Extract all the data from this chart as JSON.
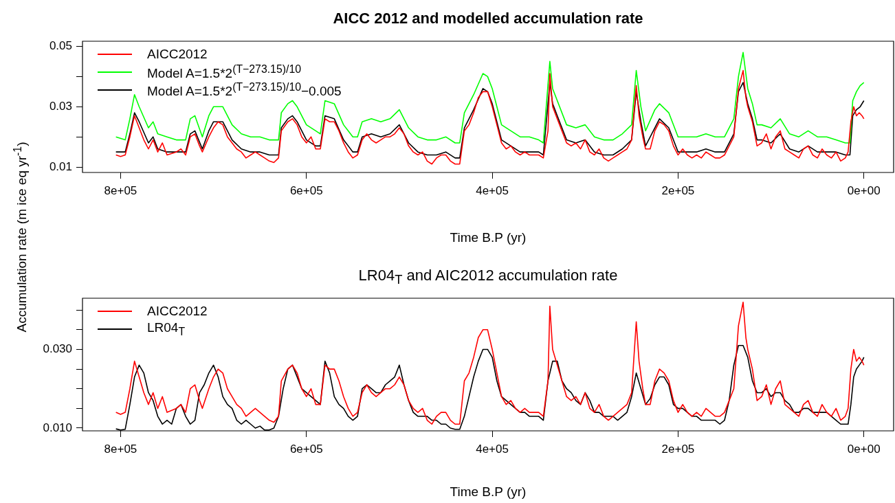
{
  "chart_data": [
    {
      "type": "line",
      "title": "AICC 2012 and modelled accumulation rate",
      "xlabel": "Time B.P (yr)",
      "ylabel": "Accumulation rate (m ice eq yr$^{-1}$)",
      "legend": "top left",
      "marker": "none",
      "line_style": "solid",
      "xlim": [
        841000,
        -32000
      ],
      "xticks": [
        {
          "value": 800000,
          "label": "8e+05"
        },
        {
          "value": 600000,
          "label": "6e+05"
        },
        {
          "value": 400000,
          "label": "4e+05"
        },
        {
          "value": 200000,
          "label": "2e+05"
        },
        {
          "value": 0,
          "label": "0e+00"
        }
      ],
      "ylim": [
        0.0082,
        0.0517
      ],
      "yticks": [
        0.01,
        {
          "value": 0.02,
          "label": null
        },
        0.03,
        {
          "value": 0.04,
          "label": null
        },
        0.05
      ],
      "series": [
        {
          "name": "AICC2012",
          "color": "#ff0000",
          "x": [
            805000,
            800000,
            795000,
            790000,
            785000,
            780000,
            775000,
            770000,
            765000,
            760000,
            755000,
            750000,
            740000,
            735000,
            730000,
            725000,
            720000,
            715000,
            712000,
            705000,
            700000,
            695000,
            690000,
            685000,
            680000,
            675000,
            670000,
            665000,
            660000,
            655000,
            650000,
            645000,
            640000,
            635000,
            630000,
            627000,
            620000,
            615000,
            610000,
            605000,
            600000,
            595000,
            590000,
            585000,
            580000,
            575000,
            570000,
            565000,
            560000,
            555000,
            550000,
            545000,
            540000,
            535000,
            530000,
            525000,
            520000,
            515000,
            510000,
            505000,
            500000,
            495000,
            490000,
            485000,
            480000,
            475000,
            470000,
            465000,
            460000,
            455000,
            450000,
            445000,
            440000,
            435000,
            430000,
            425000,
            420000,
            415000,
            410000,
            405000,
            400000,
            395000,
            390000,
            385000,
            380000,
            375000,
            370000,
            365000,
            360000,
            350000,
            345000,
            340000,
            338000,
            335000,
            330000,
            325000,
            320000,
            315000,
            310000,
            305000,
            300000,
            295000,
            290000,
            285000,
            280000,
            275000,
            270000,
            265000,
            260000,
            255000,
            250000,
            245000,
            242000,
            238000,
            235000,
            230000,
            225000,
            220000,
            215000,
            210000,
            205000,
            200000,
            195000,
            190000,
            185000,
            180000,
            175000,
            170000,
            165000,
            160000,
            155000,
            150000,
            140000,
            135000,
            130000,
            127000,
            125000,
            120000,
            115000,
            110000,
            105000,
            100000,
            95000,
            90000,
            85000,
            80000,
            75000,
            70000,
            65000,
            60000,
            55000,
            50000,
            45000,
            40000,
            35000,
            30000,
            25000,
            20000,
            17000,
            14000,
            11000,
            8000,
            5000,
            2000,
            0
          ],
          "values": [
            0.014,
            0.0135,
            0.014,
            0.02,
            0.027,
            0.023,
            0.019,
            0.016,
            0.019,
            0.015,
            0.018,
            0.014,
            0.015,
            0.016,
            0.014,
            0.02,
            0.021,
            0.017,
            0.015,
            0.02,
            0.023,
            0.025,
            0.024,
            0.02,
            0.018,
            0.016,
            0.015,
            0.013,
            0.014,
            0.015,
            0.014,
            0.013,
            0.012,
            0.0115,
            0.013,
            0.022,
            0.025,
            0.026,
            0.024,
            0.02,
            0.018,
            0.02,
            0.016,
            0.016,
            0.026,
            0.025,
            0.025,
            0.022,
            0.018,
            0.015,
            0.013,
            0.014,
            0.019,
            0.021,
            0.019,
            0.018,
            0.019,
            0.02,
            0.02,
            0.021,
            0.023,
            0.021,
            0.017,
            0.015,
            0.014,
            0.015,
            0.012,
            0.011,
            0.013,
            0.014,
            0.014,
            0.012,
            0.011,
            0.011,
            0.022,
            0.024,
            0.028,
            0.033,
            0.035,
            0.035,
            0.03,
            0.024,
            0.018,
            0.016,
            0.017,
            0.015,
            0.014,
            0.015,
            0.014,
            0.014,
            0.013,
            0.022,
            0.041,
            0.03,
            0.026,
            0.022,
            0.018,
            0.017,
            0.018,
            0.016,
            0.019,
            0.015,
            0.014,
            0.016,
            0.013,
            0.012,
            0.013,
            0.014,
            0.015,
            0.016,
            0.019,
            0.037,
            0.027,
            0.02,
            0.016,
            0.016,
            0.022,
            0.025,
            0.024,
            0.022,
            0.017,
            0.014,
            0.016,
            0.014,
            0.013,
            0.014,
            0.013,
            0.015,
            0.014,
            0.013,
            0.013,
            0.014,
            0.02,
            0.036,
            0.042,
            0.033,
            0.03,
            0.025,
            0.017,
            0.018,
            0.021,
            0.016,
            0.02,
            0.022,
            0.016,
            0.015,
            0.014,
            0.013,
            0.016,
            0.017,
            0.014,
            0.013,
            0.016,
            0.014,
            0.013,
            0.015,
            0.012,
            0.013,
            0.015,
            0.025,
            0.03,
            0.027,
            0.028,
            0.027,
            0.026
          ]
        },
        {
          "name": "Model A=1.5*2$^{(T−273.15)/10}$",
          "color": "#00ff00",
          "x": [
            805000,
            795000,
            790000,
            785000,
            780000,
            770000,
            765000,
            760000,
            750000,
            740000,
            730000,
            725000,
            720000,
            712000,
            705000,
            700000,
            690000,
            680000,
            670000,
            660000,
            650000,
            640000,
            630000,
            627000,
            620000,
            615000,
            610000,
            600000,
            590000,
            585000,
            580000,
            570000,
            560000,
            550000,
            545000,
            540000,
            530000,
            520000,
            510000,
            500000,
            490000,
            480000,
            470000,
            460000,
            450000,
            440000,
            435000,
            430000,
            420000,
            410000,
            405000,
            400000,
            390000,
            380000,
            370000,
            360000,
            350000,
            345000,
            338000,
            335000,
            330000,
            320000,
            310000,
            300000,
            290000,
            280000,
            270000,
            260000,
            250000,
            245000,
            240000,
            235000,
            225000,
            220000,
            210000,
            200000,
            190000,
            180000,
            170000,
            160000,
            150000,
            140000,
            135000,
            130000,
            125000,
            120000,
            115000,
            110000,
            100000,
            90000,
            80000,
            70000,
            60000,
            50000,
            40000,
            30000,
            20000,
            15000,
            12000,
            8000,
            4000,
            0
          ],
          "values": [
            0.02,
            0.019,
            0.026,
            0.034,
            0.03,
            0.023,
            0.025,
            0.021,
            0.02,
            0.019,
            0.019,
            0.026,
            0.027,
            0.02,
            0.027,
            0.03,
            0.03,
            0.024,
            0.021,
            0.02,
            0.02,
            0.019,
            0.019,
            0.028,
            0.031,
            0.032,
            0.03,
            0.024,
            0.022,
            0.021,
            0.032,
            0.031,
            0.024,
            0.02,
            0.02,
            0.025,
            0.026,
            0.025,
            0.026,
            0.029,
            0.023,
            0.02,
            0.019,
            0.019,
            0.02,
            0.018,
            0.018,
            0.028,
            0.034,
            0.041,
            0.04,
            0.036,
            0.024,
            0.022,
            0.02,
            0.02,
            0.019,
            0.018,
            0.045,
            0.036,
            0.032,
            0.024,
            0.023,
            0.024,
            0.02,
            0.019,
            0.019,
            0.021,
            0.024,
            0.042,
            0.03,
            0.022,
            0.029,
            0.031,
            0.028,
            0.02,
            0.02,
            0.02,
            0.021,
            0.02,
            0.02,
            0.026,
            0.04,
            0.048,
            0.036,
            0.031,
            0.024,
            0.024,
            0.023,
            0.026,
            0.021,
            0.02,
            0.022,
            0.02,
            0.02,
            0.019,
            0.018,
            0.018,
            0.032,
            0.035,
            0.037,
            0.038
          ]
        },
        {
          "name": "Model A=1.5*2$^{(T−273.15)/10}$−0.005",
          "color": "#000000",
          "x": [
            805000,
            795000,
            790000,
            785000,
            780000,
            770000,
            765000,
            760000,
            750000,
            740000,
            730000,
            725000,
            720000,
            712000,
            705000,
            700000,
            690000,
            680000,
            670000,
            660000,
            650000,
            640000,
            630000,
            627000,
            620000,
            615000,
            610000,
            600000,
            590000,
            585000,
            580000,
            570000,
            560000,
            550000,
            545000,
            540000,
            530000,
            520000,
            510000,
            500000,
            490000,
            480000,
            470000,
            460000,
            450000,
            440000,
            435000,
            430000,
            420000,
            410000,
            405000,
            400000,
            390000,
            380000,
            370000,
            360000,
            350000,
            345000,
            338000,
            335000,
            330000,
            320000,
            310000,
            300000,
            290000,
            280000,
            270000,
            260000,
            250000,
            245000,
            240000,
            235000,
            225000,
            220000,
            210000,
            200000,
            190000,
            180000,
            170000,
            160000,
            150000,
            140000,
            135000,
            130000,
            125000,
            120000,
            115000,
            110000,
            100000,
            90000,
            80000,
            70000,
            60000,
            50000,
            40000,
            30000,
            20000,
            15000,
            12000,
            8000,
            4000,
            0
          ],
          "values": [
            0.015,
            0.015,
            0.021,
            0.028,
            0.025,
            0.018,
            0.02,
            0.016,
            0.015,
            0.015,
            0.015,
            0.021,
            0.022,
            0.016,
            0.022,
            0.025,
            0.025,
            0.019,
            0.016,
            0.015,
            0.015,
            0.014,
            0.014,
            0.023,
            0.026,
            0.027,
            0.025,
            0.019,
            0.017,
            0.017,
            0.027,
            0.026,
            0.019,
            0.015,
            0.015,
            0.02,
            0.021,
            0.02,
            0.021,
            0.024,
            0.018,
            0.015,
            0.014,
            0.014,
            0.015,
            0.013,
            0.013,
            0.023,
            0.029,
            0.036,
            0.035,
            0.031,
            0.019,
            0.017,
            0.015,
            0.015,
            0.015,
            0.014,
            0.038,
            0.031,
            0.027,
            0.019,
            0.018,
            0.019,
            0.015,
            0.014,
            0.014,
            0.016,
            0.019,
            0.035,
            0.025,
            0.017,
            0.023,
            0.026,
            0.023,
            0.015,
            0.015,
            0.015,
            0.016,
            0.015,
            0.015,
            0.021,
            0.035,
            0.038,
            0.031,
            0.026,
            0.019,
            0.019,
            0.018,
            0.021,
            0.016,
            0.015,
            0.017,
            0.015,
            0.015,
            0.015,
            0.014,
            0.014,
            0.027,
            0.029,
            0.03,
            0.032
          ]
        }
      ]
    },
    {
      "type": "line",
      "title": "LR04$_{T}$ and AIC2012 accumulation rate",
      "xlabel": "Time B.P (yr)",
      "legend": "top left",
      "marker": "none",
      "line_style": "solid",
      "xlim": [
        841000,
        -32000
      ],
      "xticks": [
        {
          "value": 800000,
          "label": "8e+05"
        },
        {
          "value": 600000,
          "label": "6e+05"
        },
        {
          "value": 400000,
          "label": "4e+05"
        },
        {
          "value": 200000,
          "label": "2e+05"
        },
        {
          "value": 0,
          "label": "0e+00"
        }
      ],
      "ylim": [
        0.0093,
        0.043
      ],
      "yticks": [
        {
          "value": 0.01,
          "label": "0.010"
        },
        {
          "value": 0.015,
          "label": null
        },
        {
          "value": 0.02,
          "label": null
        },
        {
          "value": 0.025,
          "label": null
        },
        {
          "value": 0.03,
          "label": "0.030"
        },
        {
          "value": 0.035,
          "label": null
        },
        {
          "value": 0.04,
          "label": null
        }
      ],
      "series": [
        {
          "name": "AICC2012",
          "color": "#ff0000",
          "x": [
            805000,
            800000,
            795000,
            790000,
            785000,
            780000,
            775000,
            770000,
            765000,
            760000,
            755000,
            750000,
            740000,
            735000,
            730000,
            725000,
            720000,
            715000,
            712000,
            705000,
            700000,
            695000,
            690000,
            685000,
            680000,
            675000,
            670000,
            665000,
            660000,
            655000,
            650000,
            645000,
            640000,
            635000,
            630000,
            627000,
            620000,
            615000,
            610000,
            605000,
            600000,
            595000,
            590000,
            585000,
            580000,
            575000,
            570000,
            565000,
            560000,
            555000,
            550000,
            545000,
            540000,
            535000,
            530000,
            525000,
            520000,
            515000,
            510000,
            505000,
            500000,
            495000,
            490000,
            485000,
            480000,
            475000,
            470000,
            465000,
            460000,
            455000,
            450000,
            445000,
            440000,
            435000,
            430000,
            425000,
            420000,
            415000,
            410000,
            405000,
            400000,
            395000,
            390000,
            385000,
            380000,
            375000,
            370000,
            365000,
            360000,
            350000,
            345000,
            340000,
            338000,
            335000,
            330000,
            325000,
            320000,
            315000,
            310000,
            305000,
            300000,
            295000,
            290000,
            285000,
            280000,
            275000,
            270000,
            265000,
            260000,
            255000,
            250000,
            245000,
            242000,
            238000,
            235000,
            230000,
            225000,
            220000,
            215000,
            210000,
            205000,
            200000,
            195000,
            190000,
            185000,
            180000,
            175000,
            170000,
            165000,
            160000,
            155000,
            150000,
            140000,
            135000,
            130000,
            127000,
            125000,
            120000,
            115000,
            110000,
            105000,
            100000,
            95000,
            90000,
            85000,
            80000,
            75000,
            70000,
            65000,
            60000,
            55000,
            50000,
            45000,
            40000,
            35000,
            30000,
            25000,
            20000,
            17000,
            14000,
            11000,
            8000,
            5000,
            2000,
            0
          ],
          "values": [
            0.014,
            0.0135,
            0.014,
            0.02,
            0.027,
            0.023,
            0.019,
            0.016,
            0.019,
            0.015,
            0.018,
            0.014,
            0.015,
            0.016,
            0.014,
            0.02,
            0.021,
            0.017,
            0.015,
            0.02,
            0.023,
            0.025,
            0.024,
            0.02,
            0.018,
            0.016,
            0.015,
            0.013,
            0.014,
            0.015,
            0.014,
            0.013,
            0.012,
            0.0115,
            0.013,
            0.022,
            0.025,
            0.026,
            0.024,
            0.02,
            0.018,
            0.02,
            0.016,
            0.016,
            0.026,
            0.025,
            0.025,
            0.022,
            0.018,
            0.015,
            0.013,
            0.014,
            0.019,
            0.021,
            0.019,
            0.018,
            0.019,
            0.02,
            0.02,
            0.021,
            0.023,
            0.021,
            0.017,
            0.015,
            0.014,
            0.015,
            0.012,
            0.011,
            0.013,
            0.014,
            0.014,
            0.012,
            0.011,
            0.011,
            0.022,
            0.024,
            0.028,
            0.033,
            0.035,
            0.035,
            0.03,
            0.024,
            0.018,
            0.016,
            0.017,
            0.015,
            0.014,
            0.015,
            0.014,
            0.014,
            0.013,
            0.022,
            0.041,
            0.03,
            0.026,
            0.022,
            0.018,
            0.017,
            0.018,
            0.016,
            0.019,
            0.015,
            0.014,
            0.016,
            0.013,
            0.012,
            0.013,
            0.014,
            0.015,
            0.016,
            0.019,
            0.037,
            0.027,
            0.02,
            0.016,
            0.016,
            0.022,
            0.025,
            0.024,
            0.022,
            0.017,
            0.014,
            0.016,
            0.014,
            0.013,
            0.014,
            0.013,
            0.015,
            0.014,
            0.013,
            0.013,
            0.014,
            0.02,
            0.036,
            0.042,
            0.033,
            0.03,
            0.025,
            0.017,
            0.018,
            0.021,
            0.016,
            0.02,
            0.022,
            0.016,
            0.015,
            0.014,
            0.013,
            0.016,
            0.017,
            0.014,
            0.013,
            0.016,
            0.014,
            0.013,
            0.015,
            0.012,
            0.013,
            0.015,
            0.025,
            0.03,
            0.027,
            0.028,
            0.027,
            0.026
          ]
        },
        {
          "name": "LR04$_{T}$",
          "color": "#000000",
          "x": [
            805000,
            800000,
            795000,
            790000,
            785000,
            780000,
            775000,
            770000,
            765000,
            760000,
            755000,
            750000,
            745000,
            740000,
            735000,
            730000,
            725000,
            720000,
            715000,
            710000,
            705000,
            700000,
            695000,
            690000,
            685000,
            680000,
            675000,
            670000,
            665000,
            660000,
            655000,
            650000,
            645000,
            640000,
            635000,
            630000,
            625000,
            620000,
            615000,
            610000,
            605000,
            600000,
            595000,
            590000,
            585000,
            580000,
            575000,
            570000,
            565000,
            560000,
            555000,
            550000,
            545000,
            540000,
            535000,
            530000,
            525000,
            520000,
            515000,
            510000,
            505000,
            500000,
            495000,
            490000,
            485000,
            480000,
            475000,
            470000,
            465000,
            460000,
            455000,
            450000,
            445000,
            440000,
            435000,
            430000,
            425000,
            420000,
            415000,
            410000,
            405000,
            400000,
            395000,
            390000,
            385000,
            380000,
            375000,
            370000,
            365000,
            360000,
            355000,
            350000,
            345000,
            340000,
            335000,
            330000,
            325000,
            320000,
            315000,
            310000,
            305000,
            300000,
            295000,
            290000,
            285000,
            280000,
            275000,
            270000,
            265000,
            260000,
            255000,
            250000,
            245000,
            240000,
            235000,
            230000,
            225000,
            220000,
            215000,
            210000,
            205000,
            200000,
            195000,
            190000,
            185000,
            180000,
            175000,
            170000,
            165000,
            160000,
            155000,
            150000,
            145000,
            140000,
            135000,
            130000,
            125000,
            120000,
            115000,
            110000,
            105000,
            100000,
            95000,
            90000,
            85000,
            80000,
            75000,
            70000,
            65000,
            60000,
            55000,
            50000,
            45000,
            40000,
            35000,
            30000,
            25000,
            20000,
            17000,
            14000,
            11000,
            8000,
            5000,
            2000,
            0
          ],
          "values": [
            0.0098,
            0.0095,
            0.0097,
            0.016,
            0.023,
            0.026,
            0.024,
            0.019,
            0.017,
            0.013,
            0.011,
            0.012,
            0.011,
            0.015,
            0.016,
            0.013,
            0.011,
            0.012,
            0.019,
            0.021,
            0.024,
            0.026,
            0.023,
            0.018,
            0.016,
            0.015,
            0.012,
            0.011,
            0.012,
            0.011,
            0.01,
            0.0105,
            0.0095,
            0.0095,
            0.01,
            0.013,
            0.02,
            0.025,
            0.026,
            0.023,
            0.02,
            0.019,
            0.018,
            0.017,
            0.016,
            0.027,
            0.024,
            0.018,
            0.016,
            0.015,
            0.013,
            0.012,
            0.013,
            0.02,
            0.021,
            0.02,
            0.019,
            0.019,
            0.021,
            0.022,
            0.023,
            0.026,
            0.021,
            0.017,
            0.014,
            0.013,
            0.013,
            0.013,
            0.012,
            0.012,
            0.011,
            0.011,
            0.01,
            0.0097,
            0.0097,
            0.013,
            0.018,
            0.023,
            0.027,
            0.03,
            0.03,
            0.028,
            0.022,
            0.018,
            0.017,
            0.016,
            0.015,
            0.014,
            0.014,
            0.013,
            0.013,
            0.013,
            0.012,
            0.022,
            0.027,
            0.027,
            0.022,
            0.02,
            0.019,
            0.017,
            0.016,
            0.019,
            0.017,
            0.014,
            0.014,
            0.013,
            0.013,
            0.013,
            0.012,
            0.013,
            0.014,
            0.018,
            0.024,
            0.02,
            0.016,
            0.0175,
            0.021,
            0.023,
            0.023,
            0.021,
            0.016,
            0.015,
            0.015,
            0.014,
            0.013,
            0.013,
            0.012,
            0.012,
            0.012,
            0.012,
            0.011,
            0.012,
            0.017,
            0.026,
            0.031,
            0.031,
            0.028,
            0.022,
            0.019,
            0.019,
            0.02,
            0.018,
            0.019,
            0.019,
            0.017,
            0.016,
            0.014,
            0.014,
            0.015,
            0.015,
            0.014,
            0.014,
            0.014,
            0.014,
            0.013,
            0.012,
            0.011,
            0.011,
            0.011,
            0.016,
            0.023,
            0.025,
            0.026,
            0.027,
            0.028
          ]
        }
      ]
    }
  ]
}
